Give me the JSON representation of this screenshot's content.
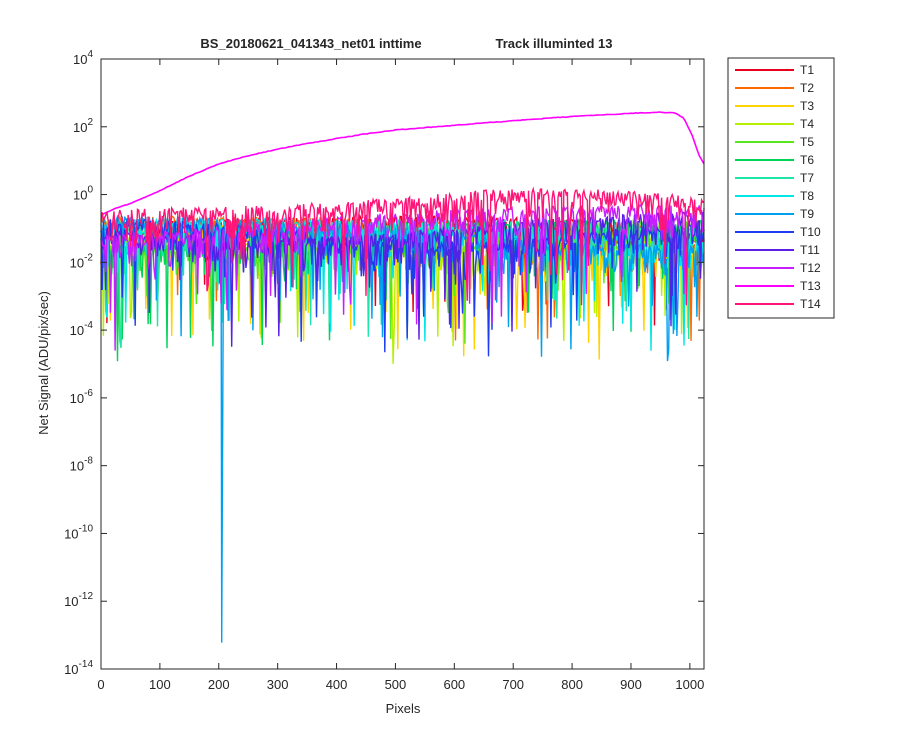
{
  "figure": {
    "title_left": "BS_20180621_041343_net01   inttime",
    "title_right": "Track illuminted 13"
  },
  "chart_data": {
    "type": "line",
    "title": "BS_20180621_041343_net01   inttime          Track illuminted 13",
    "xlabel": "Pixels",
    "ylabel": "Net Signal (ADU/pix/sec)",
    "xlim": [
      0,
      1024
    ],
    "ylim": [
      1e-14,
      10000.0
    ],
    "yscale": "log",
    "xticks": [
      0,
      100,
      200,
      300,
      400,
      500,
      600,
      700,
      800,
      900,
      1000
    ],
    "yticks": [
      {
        "base": "10",
        "exp": "4"
      },
      {
        "base": "10",
        "exp": "2"
      },
      {
        "base": "10",
        "exp": "0"
      },
      {
        "base": "10",
        "exp": "-2"
      },
      {
        "base": "10",
        "exp": "-4"
      },
      {
        "base": "10",
        "exp": "-6"
      },
      {
        "base": "10",
        "exp": "-8"
      },
      {
        "base": "10",
        "exp": "-10"
      },
      {
        "base": "10",
        "exp": "-12"
      },
      {
        "base": "10",
        "exp": "-14"
      }
    ],
    "ytick_values": [
      10000.0,
      100.0,
      1,
      0.01,
      0.0001,
      1e-06,
      1e-08,
      1e-10,
      1e-12,
      1e-14
    ],
    "grid": false,
    "legend_position": "outside-top-right",
    "series": [
      {
        "name": "T1",
        "color": "#e6001e",
        "level": 0.12
      },
      {
        "name": "T2",
        "color": "#ff6a00",
        "level": 0.12
      },
      {
        "name": "T3",
        "color": "#ffd200",
        "level": 0.1
      },
      {
        "name": "T4",
        "color": "#b4f000",
        "level": 0.1
      },
      {
        "name": "T5",
        "color": "#5ae61e",
        "level": 0.1
      },
      {
        "name": "T6",
        "color": "#00d25a",
        "level": 0.1
      },
      {
        "name": "T7",
        "color": "#1ee6aa",
        "level": 0.1
      },
      {
        "name": "T8",
        "color": "#00e6e6",
        "level": 0.1
      },
      {
        "name": "T9",
        "color": "#00a0f0",
        "level": 0.12,
        "dip": {
          "x": 205,
          "y": 6e-14
        }
      },
      {
        "name": "T10",
        "color": "#1e3cf0",
        "level": 0.15
      },
      {
        "name": "T11",
        "color": "#5a1ee6",
        "level": 0.18
      },
      {
        "name": "T12",
        "color": "#c81eff",
        "level": 0.25
      },
      {
        "name": "T13",
        "color": "#ff00ff",
        "illuminated": true,
        "points": [
          [
            0,
            0.25
          ],
          [
            25,
            0.4
          ],
          [
            50,
            0.55
          ],
          [
            100,
            1.3
          ],
          [
            150,
            3.5
          ],
          [
            200,
            8
          ],
          [
            250,
            14
          ],
          [
            300,
            22
          ],
          [
            350,
            32
          ],
          [
            400,
            45
          ],
          [
            450,
            62
          ],
          [
            500,
            80
          ],
          [
            550,
            95
          ],
          [
            600,
            110
          ],
          [
            650,
            130
          ],
          [
            700,
            150
          ],
          [
            750,
            175
          ],
          [
            800,
            200
          ],
          [
            850,
            225
          ],
          [
            900,
            250
          ],
          [
            950,
            270
          ],
          [
            975,
            255
          ],
          [
            990,
            180
          ],
          [
            1005,
            50
          ],
          [
            1015,
            15
          ],
          [
            1024,
            8
          ]
        ]
      },
      {
        "name": "T14",
        "color": "#ff1478",
        "level": 0.3,
        "profile": [
          [
            0,
            0.25
          ],
          [
            150,
            0.3
          ],
          [
            300,
            0.35
          ],
          [
            450,
            0.5
          ],
          [
            550,
            0.7
          ],
          [
            650,
            1.0
          ],
          [
            750,
            1.1
          ],
          [
            850,
            1.0
          ],
          [
            950,
            0.8
          ],
          [
            1024,
            0.55
          ]
        ]
      }
    ]
  }
}
